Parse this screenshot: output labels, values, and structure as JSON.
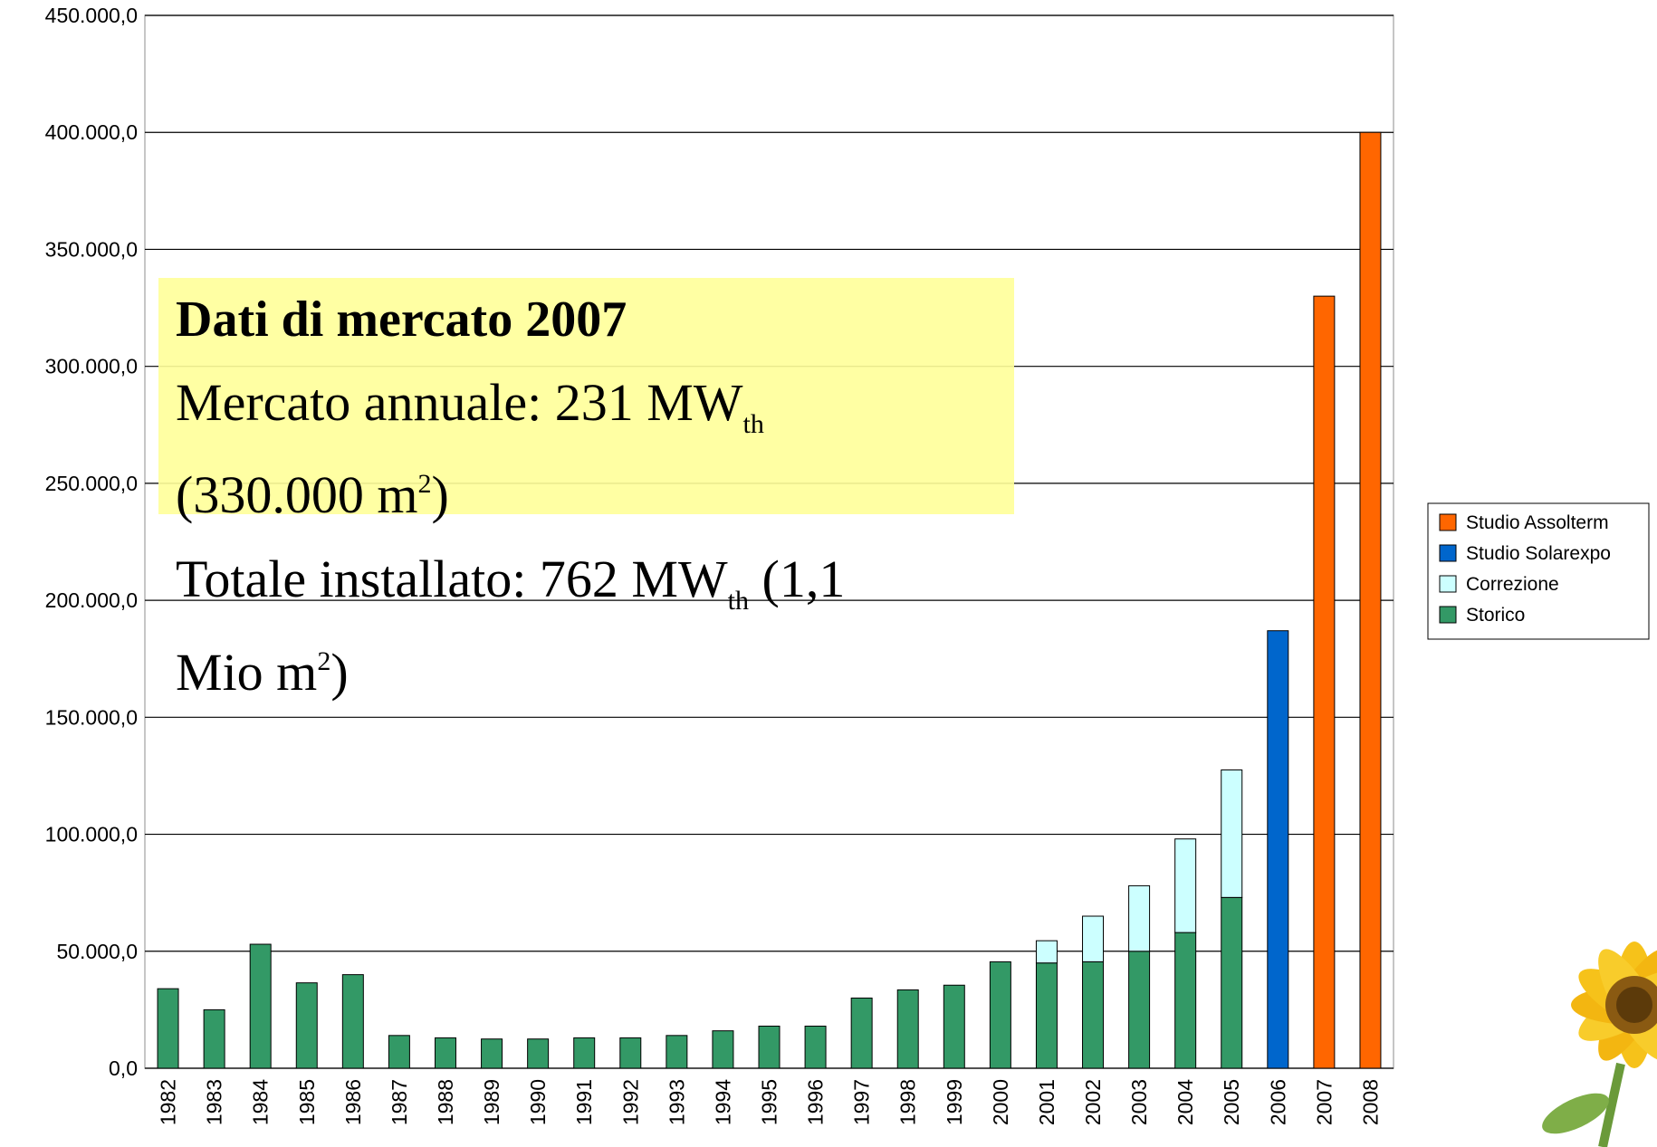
{
  "chart_data": {
    "type": "stacked_bar",
    "categories": [
      "1982",
      "1983",
      "1984",
      "1985",
      "1986",
      "1987",
      "1988",
      "1989",
      "1990",
      "1991",
      "1992",
      "1993",
      "1994",
      "1995",
      "1996",
      "1997",
      "1998",
      "1999",
      "2000",
      "2001",
      "2002",
      "2003",
      "2004",
      "2005",
      "2006",
      "2007",
      "2008"
    ],
    "series": [
      {
        "name": "Storico",
        "color": "#339966",
        "values": [
          34000,
          25000,
          53000,
          36500,
          40000,
          14000,
          13000,
          12500,
          12500,
          13000,
          13000,
          14000,
          16000,
          18000,
          18000,
          30000,
          33500,
          35500,
          45500,
          45000,
          45500,
          50000,
          58000,
          73000,
          null,
          null,
          null
        ]
      },
      {
        "name": "Correzione",
        "color": "#ccffff",
        "values": [
          null,
          null,
          null,
          null,
          null,
          null,
          null,
          null,
          null,
          null,
          null,
          null,
          null,
          null,
          null,
          null,
          null,
          null,
          null,
          9500,
          19500,
          28000,
          40000,
          54500,
          null,
          null,
          null
        ]
      },
      {
        "name": "Studio Solarexpo",
        "color": "#0066cc",
        "values": [
          null,
          null,
          null,
          null,
          null,
          null,
          null,
          null,
          null,
          null,
          null,
          null,
          null,
          null,
          null,
          null,
          null,
          null,
          null,
          null,
          null,
          null,
          null,
          null,
          187000,
          null,
          null
        ]
      },
      {
        "name": "Studio Assolterm",
        "color": "#ff6600",
        "values": [
          null,
          null,
          null,
          null,
          null,
          null,
          null,
          null,
          null,
          null,
          null,
          null,
          null,
          null,
          null,
          null,
          null,
          null,
          null,
          null,
          null,
          null,
          null,
          null,
          null,
          330000,
          400000
        ]
      }
    ],
    "ylim": [
      0,
      450000
    ],
    "yticks": [
      {
        "value": 0,
        "label": "0,0"
      },
      {
        "value": 50000,
        "label": "50.000,0"
      },
      {
        "value": 100000,
        "label": "100.000,0"
      },
      {
        "value": 150000,
        "label": "150.000,0"
      },
      {
        "value": 200000,
        "label": "200.000,0"
      },
      {
        "value": 250000,
        "label": "250.000,0"
      },
      {
        "value": 300000,
        "label": "300.000,0"
      },
      {
        "value": 350000,
        "label": "350.000,0"
      },
      {
        "value": 400000,
        "label": "400.000,0"
      },
      {
        "value": 450000,
        "label": "450.000,0"
      }
    ],
    "grid": true,
    "legend": "right",
    "annotation": {
      "title": "Dati di mercato 2007",
      "lines": [
        [
          {
            "text": "Mercato annuale: 231 MW"
          },
          {
            "sub": "th"
          }
        ],
        [
          {
            "text": "(330.000 m"
          },
          {
            "sup": "2"
          },
          {
            "text": ")"
          }
        ],
        [
          {
            "text": "Totale installato: 762 MW"
          },
          {
            "sub": "th"
          },
          {
            "text": " (1,1"
          }
        ],
        [
          {
            "text": "Mio m"
          },
          {
            "sup": "2"
          },
          {
            "text": ")"
          }
        ]
      ]
    }
  }
}
